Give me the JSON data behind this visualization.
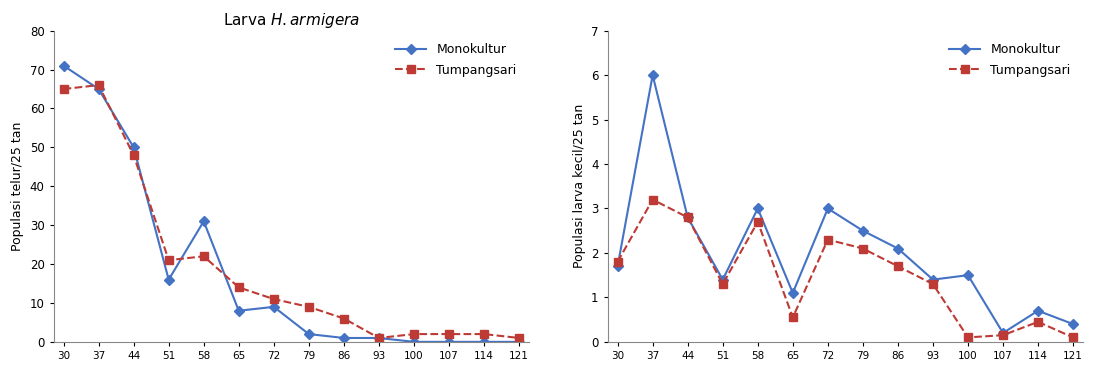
{
  "x_ticks": [
    30,
    37,
    44,
    51,
    58,
    65,
    72,
    79,
    86,
    93,
    100,
    107,
    114,
    121
  ],
  "left_title": "Larva $\\it{H. armigera}$",
  "left_ylabel": "Populasi telur/25 tan",
  "right_ylabel": "Populasi larva kecil/25 tan",
  "left_mono": [
    71,
    65,
    50,
    16,
    31,
    8,
    9,
    2,
    1,
    1,
    0,
    0,
    0,
    0
  ],
  "left_tump": [
    65,
    66,
    48,
    21,
    22,
    14,
    11,
    9,
    6,
    1,
    2,
    2,
    2,
    1
  ],
  "right_mono_x": [
    30,
    37,
    44,
    51,
    58,
    65,
    72,
    79,
    86,
    93,
    100,
    107,
    114,
    121
  ],
  "right_mono_y": [
    1.7,
    6.0,
    2.8,
    1.4,
    3.0,
    1.1,
    3.0,
    2.5,
    2.1,
    1.4,
    1.5,
    0.2,
    0.7,
    0.4
  ],
  "right_tump_x": [
    30,
    37,
    44,
    51,
    58,
    65,
    72,
    79,
    86,
    93,
    100,
    107,
    114,
    121
  ],
  "right_tump_y": [
    1.8,
    3.2,
    2.8,
    1.3,
    2.7,
    0.55,
    2.3,
    2.1,
    1.7,
    1.3,
    0.1,
    0.15,
    0.45,
    0.1
  ],
  "mono_color": "#4472C4",
  "tump_color": "#BE3A34",
  "left_ylim": [
    0,
    80
  ],
  "right_ylim": [
    0,
    7
  ],
  "left_yticks": [
    0,
    10,
    20,
    30,
    40,
    50,
    60,
    70,
    80
  ],
  "right_yticks": [
    0,
    1,
    2,
    3,
    4,
    5,
    6,
    7
  ]
}
